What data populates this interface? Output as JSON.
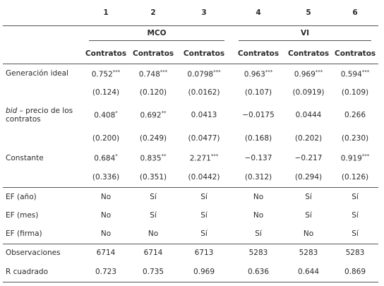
{
  "header": {
    "columns": [
      "1",
      "2",
      "3",
      "4",
      "5",
      "6"
    ],
    "groups": [
      "MCO",
      "VI"
    ],
    "dependent": [
      "Contratos",
      "Contratos",
      "Contratos",
      "Contratos",
      "Contratos",
      "Contratos"
    ]
  },
  "rows": [
    {
      "label": "Generación ideal",
      "coefficients": [
        {
          "value": "0.752",
          "stars": "***"
        },
        {
          "value": "0.748",
          "stars": "***"
        },
        {
          "value": "0.0798",
          "stars": "***"
        },
        {
          "value": "0.963",
          "stars": "***"
        },
        {
          "value": "0.969",
          "stars": "***"
        },
        {
          "value": "0.594",
          "stars": "***"
        }
      ],
      "standard_errors": [
        "(0.124)",
        "(0.120)",
        "(0.0162)",
        "(0.107)",
        "(0.0919)",
        "(0.109)"
      ]
    },
    {
      "label_italic": "bid",
      "label": " – precio de los contratos",
      "coefficients": [
        {
          "value": "0.408",
          "stars": "*"
        },
        {
          "value": "0.692",
          "stars": "**"
        },
        {
          "value": "0.0413"
        },
        {
          "value": "−0.0175"
        },
        {
          "value": "0.0444"
        },
        {
          "value": "0.266"
        }
      ],
      "standard_errors": [
        "(0.200)",
        "(0.249)",
        "(0.0477)",
        "(0.168)",
        "(0.202)",
        "(0.230)"
      ]
    },
    {
      "label": "Constante",
      "coefficients": [
        {
          "value": "0.684",
          "stars": "*"
        },
        {
          "value": "0.835",
          "stars": "**"
        },
        {
          "value": "2.271",
          "stars": "***"
        },
        {
          "value": "−0.137"
        },
        {
          "value": "−0.217"
        },
        {
          "value": "0.919",
          "stars": "***"
        }
      ],
      "standard_errors": [
        "(0.336)",
        "(0.351)",
        "(0.0442)",
        "(0.312)",
        "(0.294)",
        "(0.126)"
      ]
    }
  ],
  "fixed_effects": [
    {
      "label": "EF (año)",
      "values": [
        "No",
        "Sí",
        "Sí",
        "No",
        "Sí",
        "Sí"
      ]
    },
    {
      "label": "EF (mes)",
      "values": [
        "No",
        "Sí",
        "Sí",
        "No",
        "Sí",
        "Sí"
      ]
    },
    {
      "label": "EF (firma)",
      "values": [
        "No",
        "No",
        "Sí",
        "Sí",
        "No",
        "Sí"
      ]
    }
  ],
  "statistics": [
    {
      "label": "Observaciones",
      "values": [
        "6714",
        "6714",
        "6713",
        "5283",
        "5283",
        "5283"
      ]
    },
    {
      "label": "R cuadrado",
      "values": [
        "0.723",
        "0.735",
        "0.969",
        "0.636",
        "0.644",
        "0.869"
      ]
    }
  ]
}
